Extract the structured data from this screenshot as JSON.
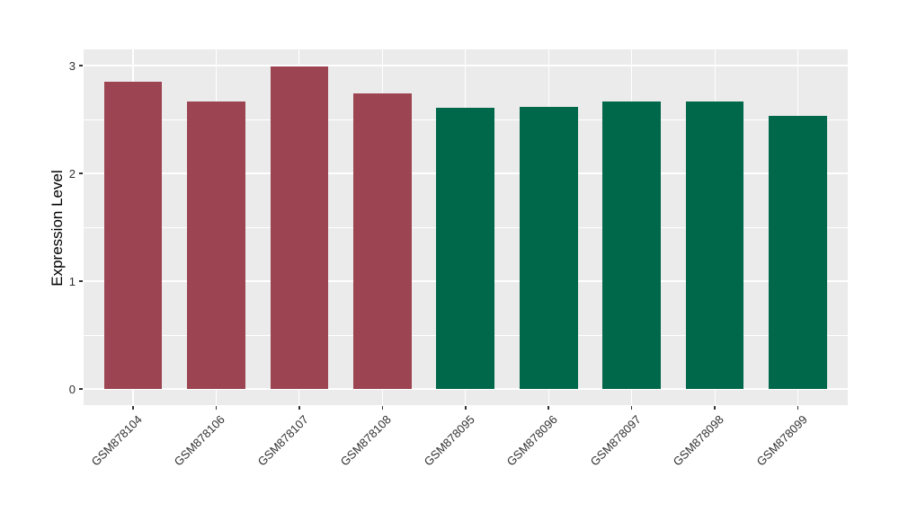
{
  "chart_data": {
    "type": "bar",
    "title": "",
    "xlabel": "",
    "ylabel": "Expression Level",
    "categories": [
      "GSM878104",
      "GSM878106",
      "GSM878107",
      "GSM878108",
      "GSM878095",
      "GSM878096",
      "GSM878097",
      "GSM878098",
      "GSM878099"
    ],
    "values": [
      2.85,
      2.67,
      2.99,
      2.74,
      2.61,
      2.62,
      2.67,
      2.67,
      2.53
    ],
    "bar_colors": [
      "#9C4452",
      "#9C4452",
      "#9C4452",
      "#9C4452",
      "#00684A",
      "#00684A",
      "#00684A",
      "#00684A",
      "#00684A"
    ],
    "groups": [
      {
        "name": "maroon-group",
        "color": "#9C4452",
        "members": [
          "GSM878104",
          "GSM878106",
          "GSM878107",
          "GSM878108"
        ]
      },
      {
        "name": "green-group",
        "color": "#00684A",
        "members": [
          "GSM878095",
          "GSM878096",
          "GSM878097",
          "GSM878098",
          "GSM878099"
        ]
      }
    ],
    "y_ticks": [
      0,
      1,
      2,
      3
    ],
    "y_minor_ticks": [
      0.5,
      1.5,
      2.5
    ],
    "ylim": [
      -0.15,
      3.15
    ],
    "bar_width_fraction": 0.7,
    "grid": true,
    "legend_position": "none",
    "panel_bg": "#EBEBEB",
    "grid_color": "#FFFFFF",
    "tick_color": "#333333",
    "axis_text_color": "#303030",
    "axis_title_color": "#000000"
  }
}
